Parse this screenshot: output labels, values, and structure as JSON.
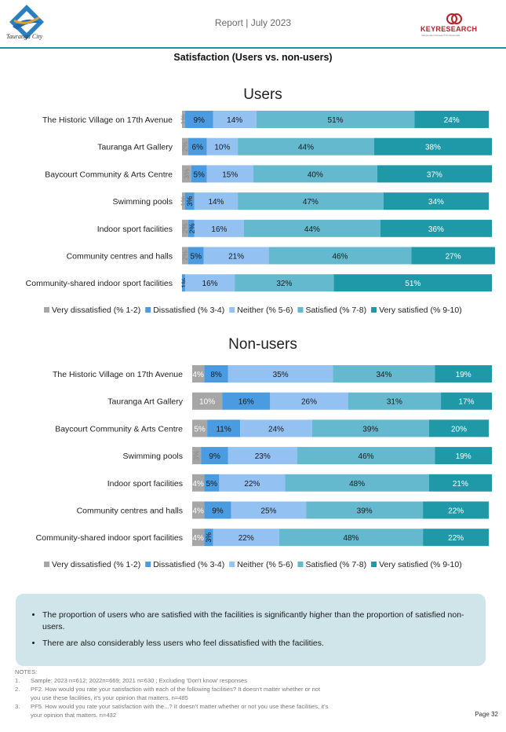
{
  "header": {
    "report_title": "Report | July 2023",
    "logo_text": "Tauranga City",
    "keyresearch_text": "KEYRESEARCH",
    "keyresearch_sub": "Independent Research Professionals"
  },
  "section_title": "Satisfaction (Users vs. non-users)",
  "colors": {
    "very_dissatisfied": "#a6a6a6",
    "dissatisfied": "#4a9be0",
    "neither": "#92c1f2",
    "satisfied": "#64b9cf",
    "very_satisfied": "#1f98a8"
  },
  "chart_data": [
    {
      "type": "bar",
      "orientation": "horizontal-stacked-100",
      "title": "Users",
      "categories": [
        "The Historic Village on 17th Avenue",
        "Tauranga Art Gallery",
        "Baycourt Community & Arts Centre",
        "Swimming pools",
        "Indoor sport facilities",
        "Community centres and halls",
        "Community-shared indoor sport facilities"
      ],
      "series": [
        {
          "name": "Very dissatisfied (% 1-2)",
          "values": [
            1,
            2,
            3,
            1,
            2,
            2,
            0
          ],
          "labels": [
            "1%",
            "2%",
            "3%",
            "1%",
            "2%",
            "2%",
            ""
          ]
        },
        {
          "name": "Dissatisfied (% 3-4)",
          "values": [
            9,
            6,
            5,
            3,
            2,
            5,
            1
          ],
          "labels": [
            "9%",
            "6%",
            "5%",
            "3%",
            "2%",
            "5%",
            "1%"
          ]
        },
        {
          "name": "Neither (% 5-6)",
          "values": [
            14,
            10,
            15,
            14,
            16,
            21,
            16
          ],
          "labels": [
            "14%",
            "10%",
            "15%",
            "14%",
            "16%",
            "21%",
            "16%"
          ]
        },
        {
          "name": "Satisfied (% 7-8)",
          "values": [
            51,
            44,
            40,
            47,
            44,
            46,
            32
          ],
          "labels": [
            "51%",
            "44%",
            "40%",
            "47%",
            "44%",
            "46%",
            "32%"
          ]
        },
        {
          "name": "Very satisfied (% 9-10)",
          "values": [
            24,
            38,
            37,
            34,
            36,
            27,
            51
          ],
          "labels": [
            "24%",
            "38%",
            "37%",
            "34%",
            "36%",
            "27%",
            "51%"
          ]
        }
      ],
      "legend": "bottom"
    },
    {
      "type": "bar",
      "orientation": "horizontal-stacked-100",
      "title": "Non-users",
      "categories": [
        "The Historic Village on 17th Avenue",
        "Tauranga Art Gallery",
        "Baycourt Community & Arts Centre",
        "Swimming pools",
        "Indoor sport facilities",
        "Community centres and halls",
        "Community-shared indoor sport facilities"
      ],
      "series": [
        {
          "name": "Very dissatisfied (% 1-2)",
          "values": [
            4,
            10,
            5,
            3,
            4,
            4,
            4
          ],
          "labels": [
            "4%",
            "10%",
            "5%",
            "3%",
            "4%",
            "4%",
            "4%"
          ]
        },
        {
          "name": "Dissatisfied (% 3-4)",
          "values": [
            8,
            16,
            11,
            9,
            5,
            9,
            3
          ],
          "labels": [
            "8%",
            "16%",
            "11%",
            "9%",
            "5%",
            "9%",
            "3%"
          ]
        },
        {
          "name": "Neither (% 5-6)",
          "values": [
            35,
            26,
            24,
            23,
            22,
            25,
            22
          ],
          "labels": [
            "35%",
            "26%",
            "24%",
            "23%",
            "22%",
            "25%",
            "22%"
          ]
        },
        {
          "name": "Satisfied (% 7-8)",
          "values": [
            34,
            31,
            39,
            46,
            48,
            39,
            48
          ],
          "labels": [
            "34%",
            "31%",
            "39%",
            "46%",
            "48%",
            "39%",
            "48%"
          ]
        },
        {
          "name": "Very satisfied (% 9-10)",
          "values": [
            19,
            17,
            20,
            19,
            21,
            22,
            22
          ],
          "labels": [
            "19%",
            "17%",
            "20%",
            "19%",
            "21%",
            "22%",
            "22%"
          ]
        }
      ],
      "legend": "bottom"
    }
  ],
  "bullets": [
    "The proportion of users who are satisfied with the facilities is significantly higher than the proportion of satisfied non-users.",
    "There are also considerably less users who feel dissatisfied with the facilities."
  ],
  "notes": {
    "heading": "NOTES:",
    "items": [
      {
        "num": "1.",
        "text": "Sample: 2023 n=612; 2022n=669; 2021 n=630 ; Excluding 'Don't know' responses"
      },
      {
        "num": "2.",
        "text": "PF2. How would you rate your satisfaction with each of the following facilities? It doesn't matter whether or not you use these facilities, it's your opinion that matters. n=485"
      },
      {
        "num": "3.",
        "text": "PF5. How would you rate your satisfaction with the...? It doesn't matter whether or not you use these facilities, it's your opinion that matters. n=432"
      }
    ]
  },
  "page_number": "Page 32"
}
